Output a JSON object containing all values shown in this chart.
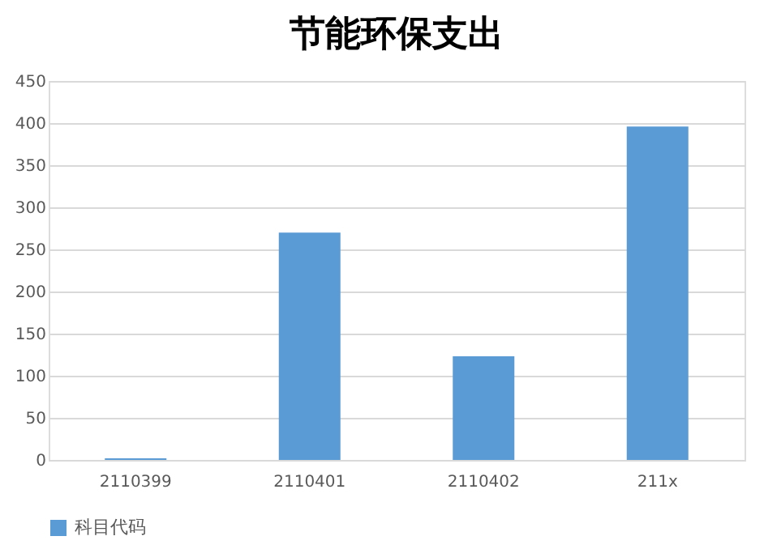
{
  "chart_data": {
    "type": "bar",
    "title": "节能环保支出",
    "categories": [
      "2110399",
      "2110401",
      "2110402",
      "211x"
    ],
    "series": [
      {
        "name": "科目代码",
        "color": "#5b9bd5",
        "values": [
          2,
          270,
          123,
          396
        ]
      }
    ],
    "ylim": [
      0,
      450
    ],
    "yticks": [
      0,
      50,
      100,
      150,
      200,
      250,
      300,
      350,
      400,
      450
    ],
    "grid": "y",
    "legend": "bottom"
  }
}
